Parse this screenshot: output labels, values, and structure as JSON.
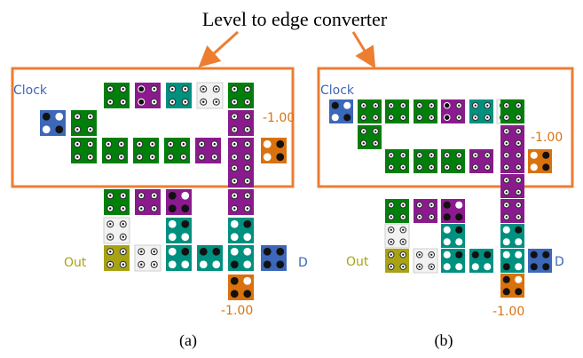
{
  "title": "Level to edge converter",
  "colors": {
    "accent": "#ED7D31",
    "green": "#00800A",
    "purple": "#8A1A8E",
    "teal": "#009080",
    "blue": "#3D67B8",
    "olive": "#A8A315",
    "orange": "#D9720E",
    "white_tile": "#F2F2F2"
  },
  "panel_a": {
    "caption": "(a)",
    "labels": {
      "clock": "Clock",
      "out": "Out",
      "d": "D",
      "value_top": "-1.00",
      "value_bottom": "-1.00"
    }
  },
  "panel_b": {
    "caption": "(b)",
    "labels": {
      "clock": "Clock",
      "out": "Out",
      "d": "D",
      "value_top": "-1.00",
      "value_bottom": "-1.00"
    }
  }
}
